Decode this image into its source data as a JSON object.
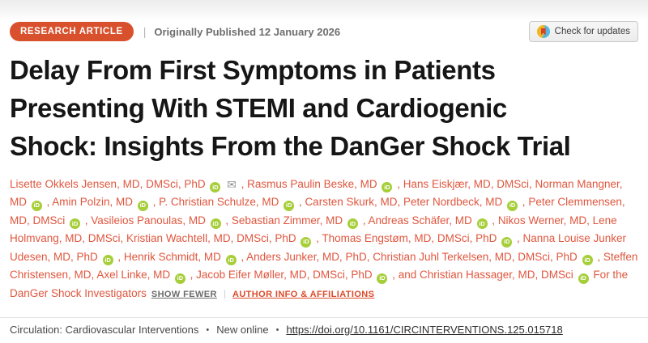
{
  "header": {
    "badge": "RESEARCH ARTICLE",
    "separator": "|",
    "published": "Originally Published 12 January 2026",
    "check_updates": "Check for updates"
  },
  "title": "Delay From First Symptoms in Patients Presenting With STEMI and Cardiogenic Shock: Insights From the DanGer Shock Trial",
  "authors": {
    "list": [
      {
        "name": "Lisette Okkels Jensen, MD, DMSci, PhD",
        "orcid": true,
        "email": true
      },
      {
        "name": "Rasmus Paulin Beske, MD",
        "orcid": true,
        "email": false
      },
      {
        "name": "Hans Eiskjær, MD, DMSci",
        "orcid": false,
        "email": false
      },
      {
        "name": "Norman Mangner, MD",
        "orcid": true,
        "email": false
      },
      {
        "name": "Amin Polzin, MD",
        "orcid": true,
        "email": false
      },
      {
        "name": "P. Christian Schulze, MD",
        "orcid": true,
        "email": false
      },
      {
        "name": "Carsten Skurk, MD",
        "orcid": false,
        "email": false
      },
      {
        "name": "Peter Nordbeck, MD",
        "orcid": true,
        "email": false
      },
      {
        "name": "Peter Clemmensen, MD, DMSci",
        "orcid": true,
        "email": false
      },
      {
        "name": "Vasileios Panoulas, MD",
        "orcid": true,
        "email": false
      },
      {
        "name": "Sebastian Zimmer, MD",
        "orcid": true,
        "email": false
      },
      {
        "name": "Andreas Schäfer, MD",
        "orcid": true,
        "email": false
      },
      {
        "name": "Nikos Werner, MD",
        "orcid": false,
        "email": false
      },
      {
        "name": "Lene Holmvang, MD, DMSci",
        "orcid": false,
        "email": false
      },
      {
        "name": "Kristian Wachtell, MD, DMSci, PhD",
        "orcid": true,
        "email": false
      },
      {
        "name": "Thomas Engstøm, MD, DMSci, PhD",
        "orcid": true,
        "email": false
      },
      {
        "name": "Nanna Louise Junker Udesen, MD, PhD",
        "orcid": true,
        "email": false
      },
      {
        "name": "Henrik Schmidt, MD",
        "orcid": true,
        "email": false
      },
      {
        "name": "Anders Junker, MD, PhD",
        "orcid": false,
        "email": false
      },
      {
        "name": "Christian Juhl Terkelsen, MD, DMSci, PhD",
        "orcid": true,
        "email": false
      },
      {
        "name": "Steffen Christensen, MD",
        "orcid": false,
        "email": false
      },
      {
        "name": "Axel Linke, MD",
        "orcid": true,
        "email": false
      },
      {
        "name": "Jacob Eifer Møller, MD, DMSci, PhD",
        "orcid": true,
        "email": false
      },
      {
        "name": "Christian Hassager, MD, DMSci",
        "orcid": true,
        "email": false
      }
    ],
    "group": "For the DanGer Shock Investigators",
    "show_fewer": "SHOW FEWER",
    "divider": "|",
    "info_link": "AUTHOR INFO & AFFILIATIONS"
  },
  "icons": {
    "orcid_label": "iD",
    "email_glyph": "✉"
  },
  "footer": {
    "journal": "Circulation: Cardiovascular Interventions",
    "bullet": "•",
    "status": "New online",
    "doi": "https://doi.org/10.1161/CIRCINTERVENTIONS.125.015718"
  },
  "colors": {
    "accent_red": "#d8502c",
    "author_red": "#e0563e",
    "orcid_green": "#a6ce39"
  }
}
